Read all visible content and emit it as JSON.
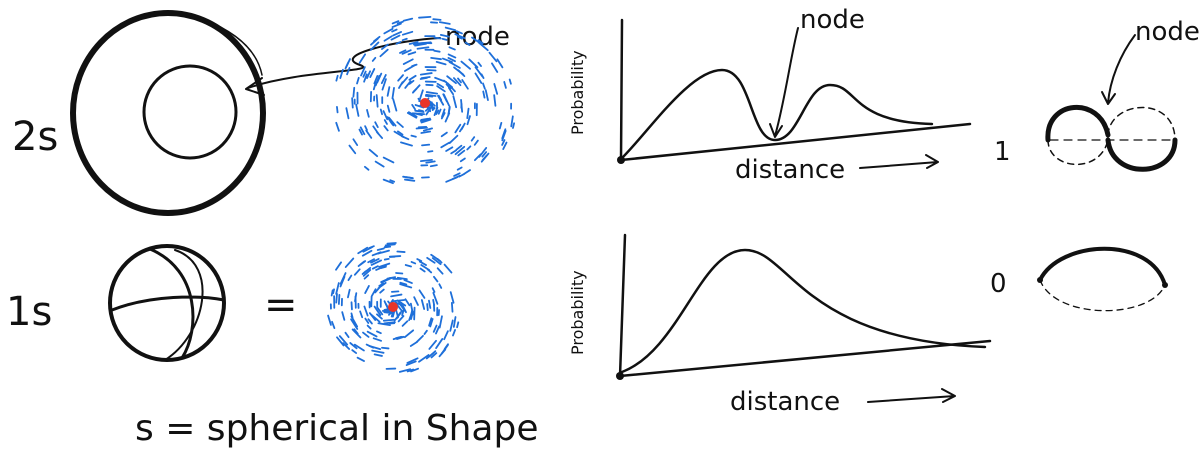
{
  "orbitals": [
    {
      "label": "2s",
      "cloud_annotation": "node",
      "plot": {
        "y_label": "Probability",
        "x_label": "distance",
        "annotation": "node"
      },
      "node_count": "1",
      "node_annotation": "node"
    },
    {
      "label": "1s",
      "equals": "=",
      "plot": {
        "y_label": "Probability",
        "x_label": "distance"
      },
      "node_count": "0"
    }
  ],
  "footer": "s = spherical in Shape"
}
